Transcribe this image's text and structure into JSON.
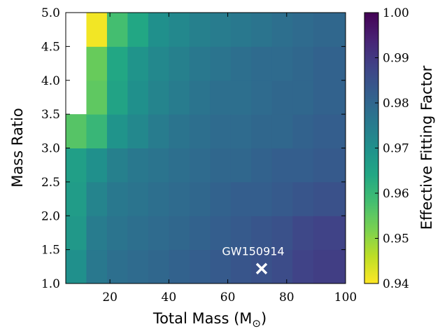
{
  "chart_data": {
    "type": "heatmap",
    "xlabel": "Total Mass (M",
    "xlabel_subscript": "⊙",
    "xlabel_close": ")",
    "ylabel": "Mass Ratio",
    "colorbar_label": "Effective Fitting Factor",
    "xlim": [
      5,
      100
    ],
    "ylim": [
      1.0,
      5.0
    ],
    "x_ticks": [
      20,
      40,
      60,
      80,
      100
    ],
    "y_ticks": [
      "1.0",
      "1.5",
      "2.0",
      "2.5",
      "3.0",
      "3.5",
      "4.0",
      "4.5",
      "5.0"
    ],
    "colorbar_range": [
      0.94,
      1.0
    ],
    "colorbar_ticks": [
      "0.94",
      "0.95",
      "0.96",
      "0.97",
      "0.98",
      "0.99",
      "1.00"
    ],
    "colormap": "viridis_r",
    "x_edges": [
      5,
      12,
      19,
      26,
      33,
      40,
      47,
      54,
      61,
      68,
      75,
      82,
      89,
      100
    ],
    "y_edges": [
      1.0,
      1.5,
      2.0,
      2.5,
      3.0,
      3.5,
      4.0,
      4.5,
      5.0
    ],
    "rows_bottom_to_top": [
      [
        0.97,
        0.976,
        0.978,
        0.979,
        0.98,
        0.981,
        0.982,
        0.983,
        0.984,
        0.985,
        0.986,
        0.988,
        0.989
      ],
      [
        0.968,
        0.975,
        0.977,
        0.978,
        0.979,
        0.98,
        0.981,
        0.982,
        0.983,
        0.984,
        0.985,
        0.987,
        0.988
      ],
      [
        0.967,
        0.973,
        0.976,
        0.977,
        0.978,
        0.979,
        0.98,
        0.981,
        0.982,
        0.982,
        0.983,
        0.984,
        0.985
      ],
      [
        0.966,
        0.97,
        0.974,
        0.976,
        0.977,
        0.978,
        0.979,
        0.98,
        0.98,
        0.981,
        0.982,
        0.982,
        0.983
      ],
      [
        0.956,
        0.96,
        0.969,
        0.972,
        0.975,
        0.977,
        0.978,
        0.979,
        0.979,
        0.98,
        0.98,
        0.981,
        0.982
      ],
      [
        null,
        0.955,
        0.965,
        0.97,
        0.973,
        0.975,
        0.977,
        0.978,
        0.978,
        0.979,
        0.98,
        0.98,
        0.981
      ],
      [
        null,
        0.954,
        0.964,
        0.969,
        0.972,
        0.974,
        0.976,
        0.977,
        0.978,
        0.979,
        0.979,
        0.98,
        0.981
      ],
      [
        null,
        0.941,
        0.958,
        0.964,
        0.97,
        0.972,
        0.974,
        0.975,
        0.976,
        0.977,
        0.978,
        0.979,
        0.98
      ]
    ],
    "annotation": {
      "text": "GW150914",
      "x": 71.5,
      "y": 1.22,
      "marker": "x"
    },
    "grid": false,
    "legend": "none"
  }
}
